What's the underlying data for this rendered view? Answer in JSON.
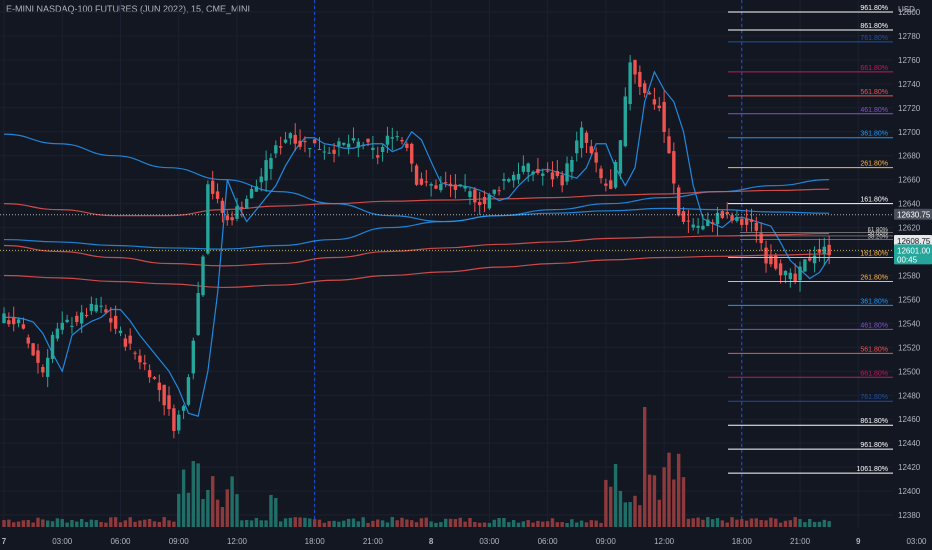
{
  "header": {
    "title": "E-MINI NASDAQ-100 FUTURES (JUN 2022), 15, CME_MINI"
  },
  "chart_data": {
    "type": "candlestick",
    "currency": "USD",
    "timeframe": "15",
    "ylim": [
      12370,
      12810
    ],
    "y_ticks": [
      12380,
      12400,
      12420,
      12440,
      12460,
      12480,
      12500,
      12520,
      12540,
      12560,
      12580,
      12600,
      12620,
      12640,
      12660,
      12680,
      12700,
      12720,
      12740,
      12760,
      12780,
      12800
    ],
    "x_ticks": [
      {
        "label": "7",
        "bold": true,
        "i": 0
      },
      {
        "label": "03:00",
        "i": 12
      },
      {
        "label": "06:00",
        "i": 24
      },
      {
        "label": "09:00",
        "i": 36
      },
      {
        "label": "12:00",
        "i": 48
      },
      {
        "label": "18:00",
        "i": 64
      },
      {
        "label": "21:00",
        "i": 76
      },
      {
        "label": "8",
        "bold": true,
        "i": 88
      },
      {
        "label": "03:00",
        "i": 100
      },
      {
        "label": "06:00",
        "i": 112
      },
      {
        "label": "09:00",
        "i": 124
      },
      {
        "label": "12:00",
        "i": 136
      },
      {
        "label": "18:00",
        "i": 152
      },
      {
        "label": "21:00",
        "i": 164
      },
      {
        "label": "9",
        "bold": true,
        "i": 176
      },
      {
        "label": "03:00",
        "i": 188
      }
    ],
    "session_markers": [
      64,
      152
    ],
    "price_labels": [
      {
        "value": 12630.75,
        "label": "12630.75",
        "bg": "#4a4f5c",
        "dotted": true
      },
      {
        "value": 12608.75,
        "label": "12608.75",
        "bg": "#e8e8ea",
        "color": "#131722",
        "dotted": false
      },
      {
        "value": 12601.0,
        "label": "12601.00",
        "sub": "00:45",
        "bg": "#26a69a",
        "dotted": true
      }
    ],
    "fib_levels": [
      {
        "label": "961.80%",
        "value": 12800,
        "color": "#ffffff"
      },
      {
        "label": "861.80%",
        "value": 12785,
        "color": "#ffffff"
      },
      {
        "label": "761.80%",
        "value": 12775,
        "color": "#1e4fa0"
      },
      {
        "label": "661.80%",
        "value": 12750,
        "color": "#c2185b"
      },
      {
        "label": "561.80%",
        "value": 12730,
        "color": "#ef5350"
      },
      {
        "label": "461.80%",
        "value": 12715,
        "color": "#7e57c2"
      },
      {
        "label": "361.80%",
        "value": 12695,
        "color": "#2196f3"
      },
      {
        "label": "261.80%",
        "value": 12670,
        "color": "#ffb74d"
      },
      {
        "label": "161.80%",
        "value": 12640,
        "color": "#ffffff"
      },
      {
        "label": "161.80%",
        "value": 12595,
        "color": "#ffb74d"
      },
      {
        "label": "261.80%",
        "value": 12575,
        "color": "#ffb74d"
      },
      {
        "label": "361.80%",
        "value": 12555,
        "color": "#2196f3"
      },
      {
        "label": "461.80%",
        "value": 12535,
        "color": "#7e57c2"
      },
      {
        "label": "561.80%",
        "value": 12515,
        "color": "#ef5350"
      },
      {
        "label": "661.80%",
        "value": 12495,
        "color": "#c2185b"
      },
      {
        "label": "761.80%",
        "value": 12475,
        "color": "#1e4fa0"
      },
      {
        "label": "861.80%",
        "value": 12455,
        "color": "#ffffff"
      },
      {
        "label": "961.80%",
        "value": 12435,
        "color": "#ffffff"
      },
      {
        "label": "1061.80%",
        "value": 12415,
        "color": "#ffffff"
      }
    ],
    "fib_mid_labels": [
      "61.80%",
      "50.00%",
      "38.20%"
    ],
    "colors": {
      "up": "#26a69a",
      "down": "#ef5350",
      "vol_up": "#1f6f68",
      "vol_down": "#8e3a3c",
      "ma_blue": "#2196f3",
      "ma_red": "#ef5350"
    },
    "series": [
      {
        "name": "Blue MA 1",
        "color": "#2196f3",
        "values": [
          12698,
          12690,
          12680,
          12670,
          12660,
          12650,
          12640,
          12630,
          12625,
          12630,
          12635,
          12640,
          12645,
          12650,
          12655,
          12660
        ]
      },
      {
        "name": "Blue MA 2",
        "color": "#2196f3",
        "values": [
          12610,
          12608,
          12605,
          12603,
          12602,
          12605,
          12610,
          12620,
          12625,
          12630,
          12632,
          12634,
          12636,
          12635,
          12633,
          12632
        ]
      },
      {
        "name": "Red MA 1",
        "color": "#ef5350",
        "values": [
          12640,
          12635,
          12630,
          12630,
          12635,
          12638,
          12640,
          12642,
          12643,
          12644,
          12645,
          12647,
          12648,
          12650,
          12651,
          12652
        ]
      },
      {
        "name": "Red MA 2",
        "color": "#ef5350",
        "values": [
          12605,
          12600,
          12595,
          12590,
          12588,
          12590,
          12595,
          12600,
          12603,
          12606,
          12608,
          12611,
          12612,
          12613,
          12614,
          12615
        ]
      },
      {
        "name": "Red MA 3",
        "color": "#ef5350",
        "values": [
          12580,
          12578,
          12575,
          12573,
          12570,
          12572,
          12576,
          12580,
          12583,
          12587,
          12590,
          12593,
          12595,
          12596,
          12597,
          12598
        ]
      }
    ],
    "price_path": [
      [
        0,
        12545
      ],
      [
        4,
        12540
      ],
      [
        7,
        12515
      ],
      [
        9,
        12500
      ],
      [
        11,
        12530
      ],
      [
        14,
        12540
      ],
      [
        17,
        12545
      ],
      [
        20,
        12555
      ],
      [
        22,
        12548
      ],
      [
        25,
        12530
      ],
      [
        28,
        12515
      ],
      [
        31,
        12500
      ],
      [
        33,
        12485
      ],
      [
        35,
        12465
      ],
      [
        36,
        12455
      ],
      [
        38,
        12470
      ],
      [
        40,
        12530
      ],
      [
        42,
        12600
      ],
      [
        43,
        12660
      ],
      [
        45,
        12640
      ],
      [
        47,
        12625
      ],
      [
        50,
        12640
      ],
      [
        53,
        12655
      ],
      [
        56,
        12680
      ],
      [
        58,
        12690
      ],
      [
        60,
        12700
      ],
      [
        62,
        12690
      ],
      [
        64,
        12690
      ],
      [
        68,
        12685
      ],
      [
        72,
        12690
      ],
      [
        75,
        12690
      ],
      [
        78,
        12680
      ],
      [
        81,
        12700
      ],
      [
        84,
        12690
      ],
      [
        86,
        12660
      ],
      [
        88,
        12655
      ],
      [
        92,
        12655
      ],
      [
        96,
        12650
      ],
      [
        100,
        12640
      ],
      [
        104,
        12660
      ],
      [
        108,
        12670
      ],
      [
        112,
        12665
      ],
      [
        116,
        12660
      ],
      [
        120,
        12700
      ],
      [
        122,
        12680
      ],
      [
        124,
        12660
      ],
      [
        126,
        12650
      ],
      [
        128,
        12690
      ],
      [
        130,
        12760
      ],
      [
        132,
        12740
      ],
      [
        134,
        12730
      ],
      [
        136,
        12720
      ],
      [
        138,
        12680
      ],
      [
        140,
        12630
      ],
      [
        142,
        12625
      ],
      [
        145,
        12620
      ],
      [
        148,
        12630
      ],
      [
        152,
        12625
      ],
      [
        156,
        12620
      ],
      [
        158,
        12595
      ],
      [
        160,
        12590
      ],
      [
        162,
        12580
      ],
      [
        164,
        12575
      ],
      [
        166,
        12590
      ],
      [
        168,
        12600
      ],
      [
        170,
        12601
      ]
    ],
    "candle_count": 171
  }
}
